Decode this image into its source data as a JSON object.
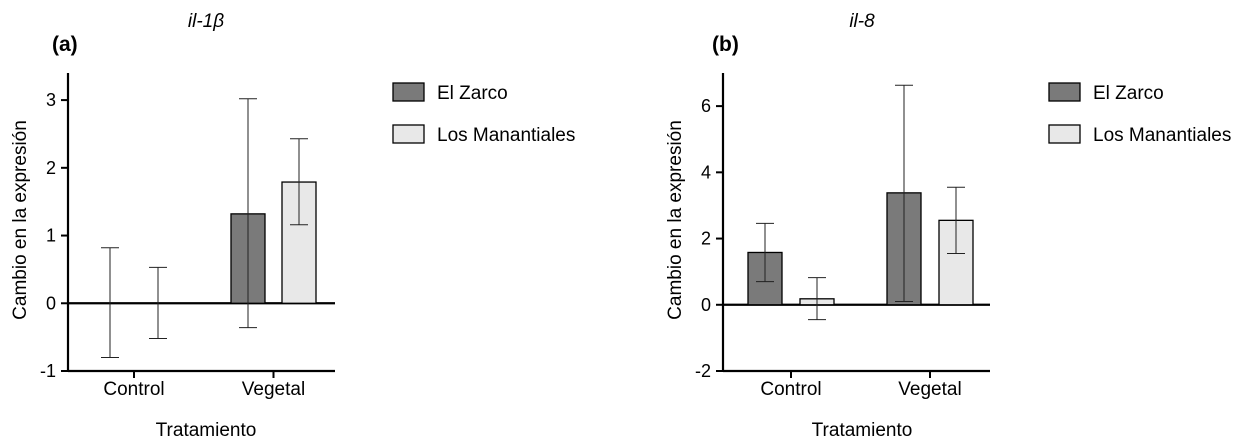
{
  "figure": {
    "colors": {
      "el_zarco": "#7a7a7a",
      "los_manantiales": "#e8e8e8"
    },
    "legend_labels": [
      "El Zarco",
      "Los Manantiales"
    ]
  },
  "chart_data": [
    {
      "type": "bar",
      "panel_label": "(a)",
      "title": "il-1β",
      "xlabel": "Tratamiento",
      "ylabel": "Cambio en la expresión",
      "categories": [
        "Control",
        "Vegetal"
      ],
      "ylim": [
        -1,
        3.4
      ],
      "yticks": [
        -1,
        0,
        1,
        2,
        3
      ],
      "legend": "right",
      "grid": false,
      "series": [
        {
          "name": "El Zarco",
          "values": [
            0,
            1.32
          ],
          "err_low": [
            -0.8,
            -0.36
          ],
          "err_high": [
            0.82,
            3.02
          ]
        },
        {
          "name": "Los Manantiales",
          "values": [
            0,
            1.79
          ],
          "err_low": [
            -0.52,
            1.16
          ],
          "err_high": [
            0.53,
            2.43
          ]
        }
      ]
    },
    {
      "type": "bar",
      "panel_label": "(b)",
      "title": "il-8",
      "xlabel": "Tratamiento",
      "ylabel": "Cambio en la expresión",
      "categories": [
        "Control",
        "Vegetal"
      ],
      "ylim": [
        -2,
        7
      ],
      "yticks": [
        -2,
        0,
        2,
        4,
        6
      ],
      "legend": "right",
      "grid": false,
      "series": [
        {
          "name": "El Zarco",
          "values": [
            1.58,
            3.38
          ],
          "err_low": [
            0.7,
            0.1
          ],
          "err_high": [
            2.46,
            6.63
          ]
        },
        {
          "name": "Los Manantiales",
          "values": [
            0.18,
            2.55
          ],
          "err_low": [
            -0.45,
            1.55
          ],
          "err_high": [
            0.82,
            3.55
          ]
        }
      ]
    }
  ]
}
